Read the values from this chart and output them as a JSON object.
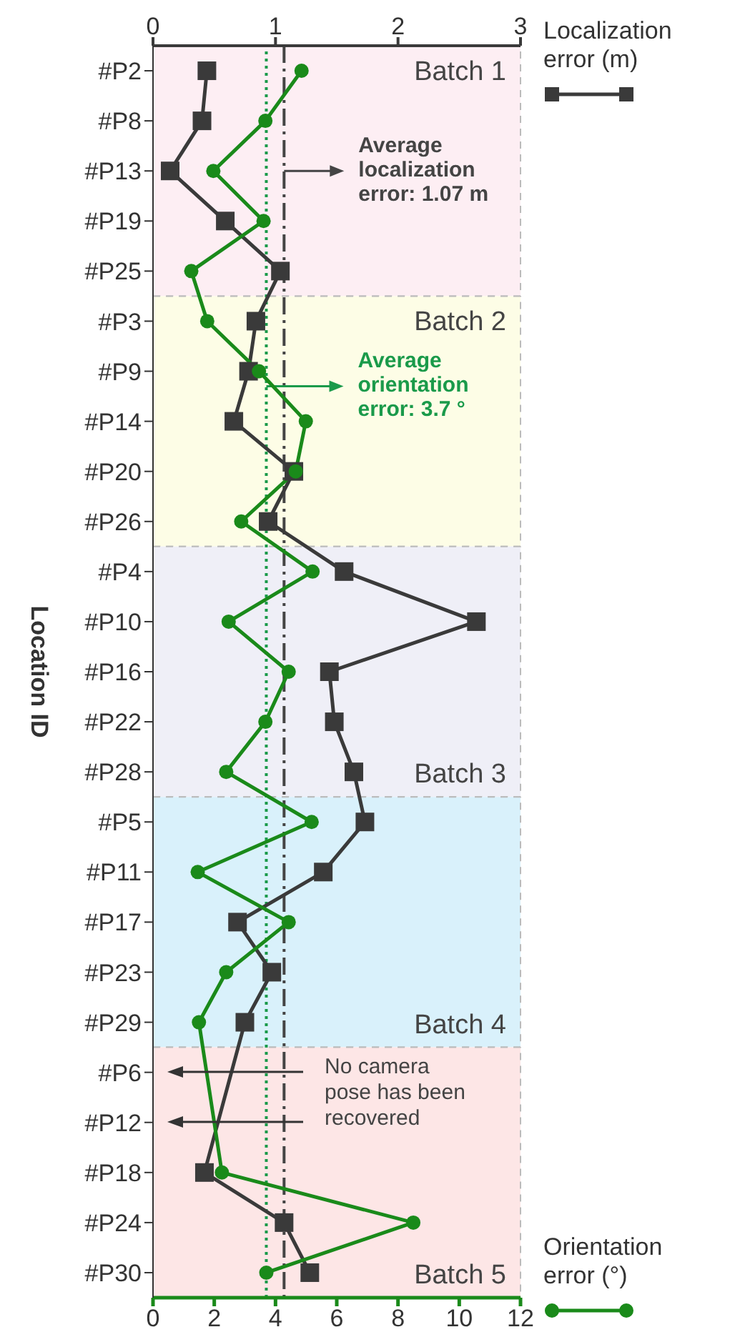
{
  "chart_data": {
    "type": "line",
    "orientation": "horizontal",
    "ylabel": "Location ID",
    "categories": [
      "#P2",
      "#P8",
      "#P13",
      "#P19",
      "#P25",
      "#P3",
      "#P9",
      "#P14",
      "#P20",
      "#P26",
      "#P4",
      "#P10",
      "#P16",
      "#P22",
      "#P28",
      "#P5",
      "#P11",
      "#P17",
      "#P23",
      "#P29",
      "#P6",
      "#P12",
      "#P18",
      "#P24",
      "#P30"
    ],
    "series": [
      {
        "name": "Localization error (m)",
        "color": "#3a3a3a",
        "axis": "x2",
        "marker": "square",
        "values": [
          0.44,
          0.4,
          0.14,
          0.59,
          1.04,
          0.84,
          0.78,
          0.66,
          1.15,
          0.94,
          1.56,
          2.64,
          1.44,
          1.48,
          1.64,
          1.73,
          1.39,
          0.69,
          0.97,
          0.75,
          null,
          null,
          0.42,
          1.07,
          1.28
        ]
      },
      {
        "name": "Orientation error (°)",
        "color": "#1a8a1a",
        "marker": "circle",
        "values": [
          4.85,
          3.67,
          1.97,
          3.61,
          1.25,
          1.77,
          3.46,
          4.99,
          4.66,
          2.88,
          5.21,
          2.47,
          4.43,
          3.67,
          2.39,
          5.18,
          1.46,
          4.43,
          2.39,
          1.5,
          null,
          null,
          2.25,
          8.5,
          3.7
        ]
      }
    ],
    "xlim": [
      0,
      12
    ],
    "xticks": [
      0,
      2,
      4,
      6,
      8,
      10,
      12
    ],
    "x2lim": [
      0,
      3
    ],
    "x2ticks": [
      0,
      1,
      2,
      3
    ],
    "ref_lines": [
      {
        "axis": "x2",
        "value": 1.07,
        "label": "Average localization error: 1.07 m",
        "color": "#444444",
        "line_style": "dashdot"
      },
      {
        "axis": "x",
        "value": 3.7,
        "label": "Average orientation error: 3.7 °",
        "color": "#1a9a4a",
        "line_style": "dotted"
      }
    ],
    "bands": [
      {
        "axis": "y",
        "from": "#P2",
        "to": "#P25",
        "label": "Batch 1",
        "color": "#fdeef3"
      },
      {
        "axis": "y",
        "from": "#P3",
        "to": "#P26",
        "label": "Batch 2",
        "color": "#fdfde6"
      },
      {
        "axis": "y",
        "from": "#P4",
        "to": "#P28",
        "label": "Batch 3",
        "color": "#efeff7"
      },
      {
        "axis": "y",
        "from": "#P5",
        "to": "#P29",
        "label": "Batch 4",
        "color": "#d9f1fb"
      },
      {
        "axis": "y",
        "from": "#P6",
        "to": "#P30",
        "label": "Batch 5",
        "color": "#fde6e6"
      }
    ],
    "annotations": [
      "No camera pose has been recovered"
    ],
    "grid": false,
    "legend": "right"
  }
}
